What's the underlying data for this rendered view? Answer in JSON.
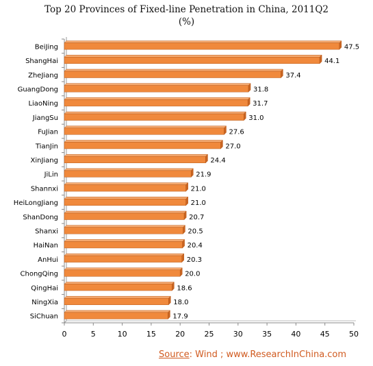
{
  "chart_data": {
    "type": "bar",
    "orientation": "horizontal",
    "title": "Top 20 Provinces of Fixed-line Penetration in China, 2011Q2",
    "subtitle": "(%)",
    "categories": [
      "BeiJing",
      "ShangHai",
      "ZheJiang",
      "GuangDong",
      "LiaoNing",
      "JiangSu",
      "FuJian",
      "TianJin",
      "XinJiang",
      "JiLin",
      "Shannxi",
      "HeiLongJiang",
      "ShanDong",
      "Shanxi",
      "HaiNan",
      "AnHui",
      "ChongQing",
      "QingHai",
      "NingXia",
      "SiChuan"
    ],
    "values": [
      47.5,
      44.1,
      37.4,
      31.8,
      31.7,
      31.0,
      27.6,
      27.0,
      24.4,
      21.9,
      21.0,
      21.0,
      20.7,
      20.5,
      20.4,
      20.3,
      20.0,
      18.6,
      18.0,
      17.9
    ],
    "value_labels": [
      "47.5",
      "44.1",
      "37.4",
      "31.8",
      "31.7",
      "31.0",
      "27.6",
      "27.0",
      "24.4",
      "21.9",
      "21.0",
      "21.0",
      "20.7",
      "20.5",
      "20.4",
      "20.3",
      "20.0",
      "18.6",
      "18.0",
      "17.9"
    ],
    "xlim": [
      0,
      50
    ],
    "xticks": [
      "0",
      "5",
      "10",
      "15",
      "20",
      "25",
      "30",
      "35",
      "40",
      "45",
      "50"
    ],
    "grid": false,
    "legend": "none",
    "bar_color": "#f0893c",
    "bar_edge_color": "#b85a1a"
  },
  "source": {
    "label": "Source",
    "text": ": Wind ; www.ResearchInChina.com",
    "color": "#d05a1f"
  }
}
